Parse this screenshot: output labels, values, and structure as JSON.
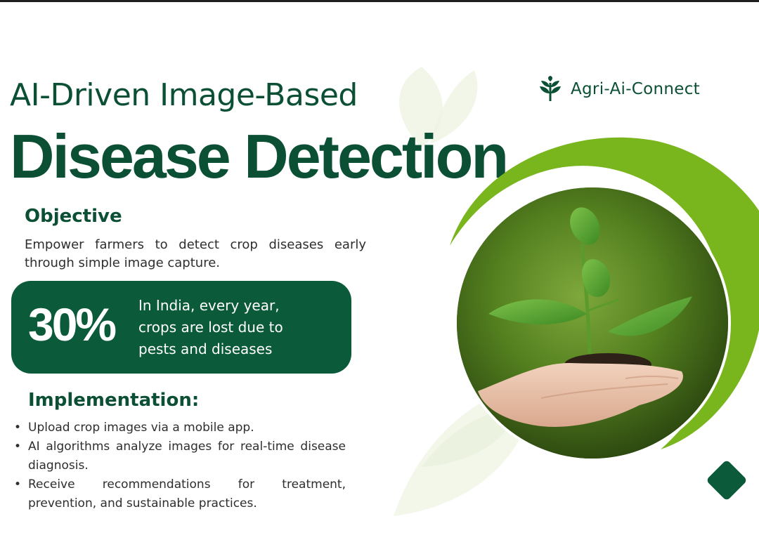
{
  "brand": {
    "name": "Agri-Ai-Connect",
    "icon": "sprout-icon"
  },
  "title": {
    "line1": "AI-Driven Image-Based",
    "line2": "Disease Detection"
  },
  "objective": {
    "heading": "Objective",
    "text": "Empower farmers to detect crop diseases early through simple image capture."
  },
  "stat": {
    "value": "30%",
    "line1": "In India, every year,",
    "line2": "crops are lost due to",
    "line3": "pests and diseases"
  },
  "implementation": {
    "heading": "Implementation:",
    "items": [
      "Upload crop images via a mobile app.",
      "AI algorithms analyze images for real-time disease diagnosis.",
      "Receive recommendations for treatment, prevention, and sustainable practices."
    ]
  },
  "colors": {
    "dark_green": "#0b5a3a",
    "light_green": "#7ab51d",
    "text": "#2e2e2e"
  }
}
